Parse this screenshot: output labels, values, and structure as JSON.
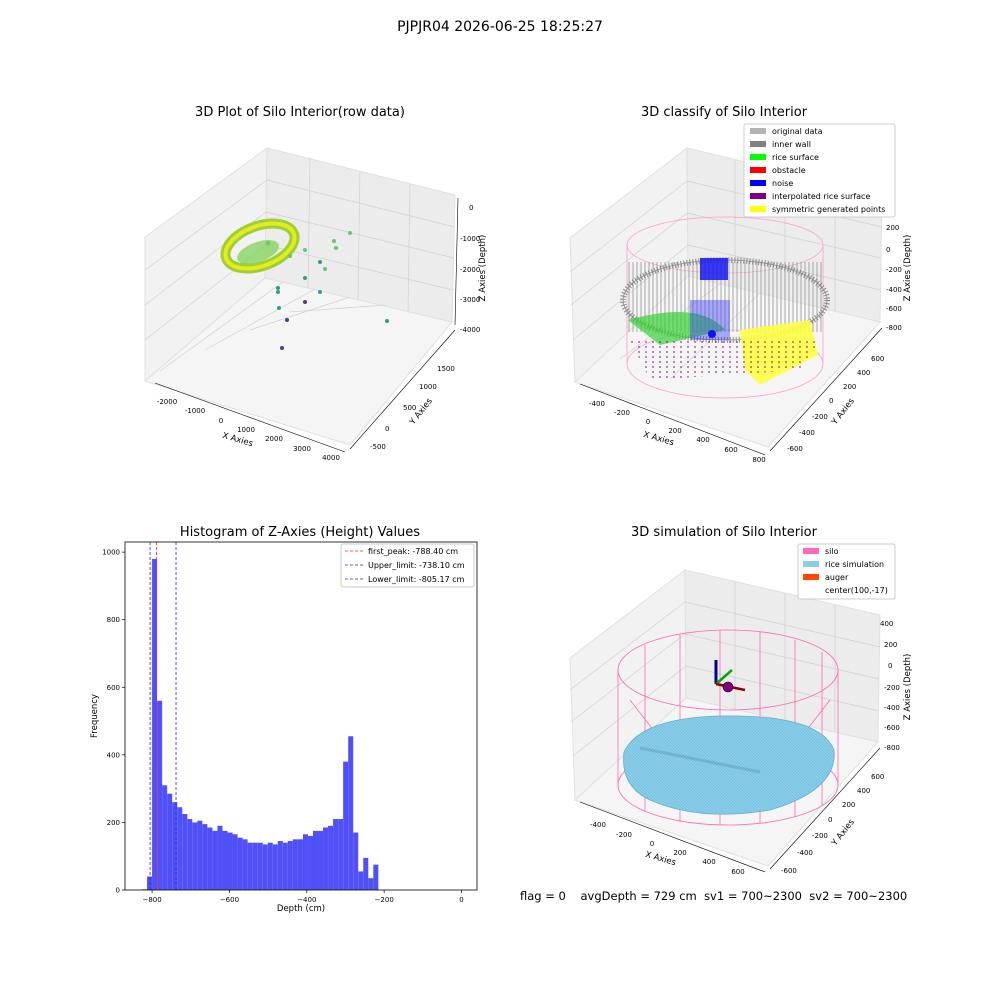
{
  "suptitle": "PJPJR04 2026-06-25 18:25:27",
  "footer": {
    "flag": "flag = 0",
    "avg": "avgDepth = 729 cm",
    "sv1": "sv1 = 700~2300",
    "sv2": "sv2 = 700~2300"
  },
  "chart_data": [
    {
      "type": "scatter",
      "title": "3D Plot of Silo Interior(row data)",
      "xlabel": "X Axies",
      "ylabel": "Y Axies",
      "zlabel": "Z Axies (Depth)",
      "xticks": [
        "-2000",
        "-1000",
        "0",
        "1000",
        "2000",
        "3000",
        "4000"
      ],
      "yticks": [
        "-500",
        "0",
        "500",
        "1000",
        "1500"
      ],
      "zticks": [
        "0",
        "-1000",
        "-2000",
        "-3000",
        "-4000"
      ],
      "colormap": "viridis"
    },
    {
      "type": "scatter",
      "title": "3D classify of Silo Interior",
      "xlabel": "X Axies",
      "ylabel": "Y Axies",
      "zlabel": "Z Axies (Depth)",
      "xticks": [
        "-400",
        "-200",
        "0",
        "200",
        "400",
        "600",
        "800"
      ],
      "yticks": [
        "-600",
        "-400",
        "-200",
        "0",
        "200",
        "400",
        "600"
      ],
      "zticks": [
        "200",
        "0",
        "-200",
        "-400",
        "-600",
        "-800"
      ],
      "legend_position": "top-right",
      "legend": [
        {
          "label": "original data",
          "color": "#b3b3b3"
        },
        {
          "label": "inner wall",
          "color": "#808080"
        },
        {
          "label": "rice surface",
          "color": "#00ff00"
        },
        {
          "label": "obstacle",
          "color": "#ff0000"
        },
        {
          "label": "noise",
          "color": "#0000ff"
        },
        {
          "label": "interpolated rice surface",
          "color": "#800080"
        },
        {
          "label": "symmetric generated points",
          "color": "#ffff00"
        }
      ]
    },
    {
      "type": "bar",
      "title": "Histogram of Z-Axies (Height) Values",
      "xlabel": "Depth (cm)",
      "ylabel": "Frequency",
      "xlim": [
        -870,
        40
      ],
      "ylim": [
        0,
        1030
      ],
      "xticks": [
        -800,
        -600,
        -400,
        -200,
        0
      ],
      "xtick_labels": [
        "−800",
        "−600",
        "−400",
        "−200",
        "0"
      ],
      "yticks": [
        0,
        200,
        400,
        600,
        800,
        1000
      ],
      "bar_color": "#5050f8",
      "bin_start": -826.0,
      "bin_width": 13.0,
      "values": [
        2,
        40,
        980,
        560,
        310,
        285,
        260,
        245,
        225,
        210,
        200,
        205,
        195,
        185,
        175,
        190,
        175,
        170,
        165,
        155,
        150,
        140,
        140,
        140,
        135,
        140,
        135,
        145,
        140,
        145,
        150,
        150,
        165,
        160,
        175,
        175,
        185,
        190,
        210,
        210,
        380,
        455,
        170,
        55,
        95,
        35,
        75
      ],
      "vlines": [
        {
          "label": "first_peak: -788.40 cm",
          "x": -788.4,
          "color": "#ff2020"
        },
        {
          "label": "Upper_limit: -738.10 cm",
          "x": -738.1,
          "color": "#2020ff"
        },
        {
          "label": "Lower_limit: -805.17 cm",
          "x": -805.17,
          "color": "#2020ff"
        }
      ],
      "legend_position": "top-right"
    },
    {
      "type": "scatter",
      "title": "3D simulation of Silo Interior",
      "xlabel": "X Axies",
      "ylabel": "Y Axies",
      "zlabel": "Z Axies (Depth)",
      "xticks": [
        "-400",
        "-200",
        "0",
        "200",
        "400",
        "600"
      ],
      "yticks": [
        "-600",
        "-400",
        "-200",
        "0",
        "200",
        "400",
        "600"
      ],
      "zticks": [
        "400",
        "200",
        "0",
        "-200",
        "-400",
        "-600",
        "-800"
      ],
      "legend_position": "top-right",
      "legend": [
        {
          "label": "silo",
          "color": "#ff69b4"
        },
        {
          "label": "rice simulation",
          "color": "#87ceeb"
        },
        {
          "label": "auger",
          "color": "#ff4500"
        },
        {
          "label": "center(100,-17)",
          "color": ""
        }
      ]
    }
  ]
}
